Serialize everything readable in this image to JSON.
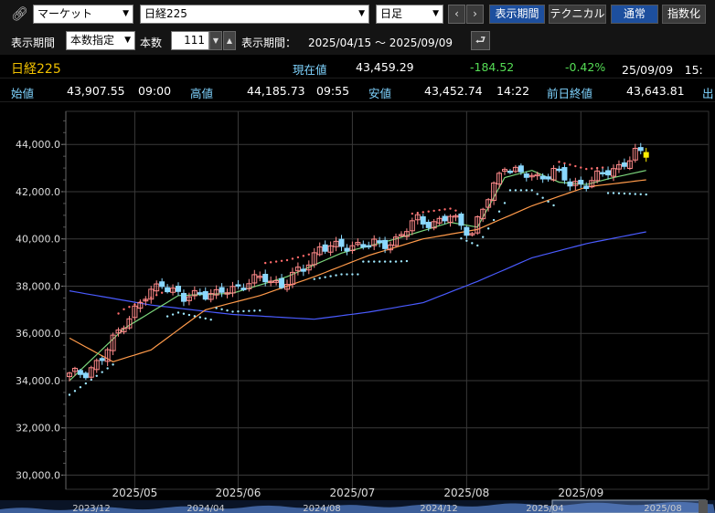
{
  "toolbar": {
    "market_select": "マーケット",
    "symbol_select": "日経225",
    "interval_select": "日足",
    "prev_icon": "chevron-left-icon",
    "next_icon": "chevron-right-icon",
    "display_period_button": "表示期間",
    "technical_button": "テクニカル",
    "normal_button": "通常",
    "index_button": "指数化"
  },
  "period": {
    "label": "表示期間",
    "mode_select": "本数指定",
    "count_label": "本数",
    "count_value": "111",
    "range_label": "表示期間：",
    "range_value": "2025/04/15 ～ 2025/09/09"
  },
  "quote": {
    "name": "日経225",
    "current_label": "現在値",
    "current_value": "43,459.29",
    "change": "-184.52",
    "change_pct": "-0.42%",
    "datetime": "25/09/09　15:",
    "open_label": "始値",
    "open_value": "43,907.55",
    "open_time": "09:00",
    "high_label": "高値",
    "high_value": "44,185.73",
    "high_time": "09:55",
    "low_label": "安値",
    "low_value": "43,452.74",
    "low_time": "14:22",
    "prev_close_label": "前日終値",
    "prev_close_value": "43,643.81",
    "prev_close_extra": "出"
  },
  "colors": {
    "up": "#ff8a8a",
    "down": "#8ad8ff",
    "ma_short": "#7cd67c",
    "ma_mid": "#ff9a4a",
    "ma_long": "#4a5bff",
    "sar_up": "#9fe8ff",
    "sar_down": "#ff6b6b",
    "last_candle": "#ffee00"
  },
  "chart_data": {
    "type": "candlestick",
    "y_ticks": [
      "44,000.0",
      "42,000.0",
      "40,000.0",
      "38,000.0",
      "36,000.0",
      "34,000.0",
      "32,000.0",
      "30,000.0"
    ],
    "y_tick_values": [
      44000,
      42000,
      40000,
      38000,
      36000,
      34000,
      32000,
      30000
    ],
    "ylim": [
      29400,
      45400
    ],
    "x_labels": [
      "2025/05",
      "2025/06",
      "2025/07",
      "2025/08",
      "2025/09"
    ],
    "x_label_index": [
      12,
      31,
      52,
      73,
      94
    ],
    "navigator_labels": [
      "2023/12",
      "2024/04",
      "2024/08",
      "2024/12",
      "2025/04",
      "2025/08"
    ],
    "num_bars": 111,
    "anchors": [
      [
        0,
        34200
      ],
      [
        3,
        34400
      ],
      [
        6,
        34900
      ],
      [
        10,
        36500
      ],
      [
        14,
        37500
      ],
      [
        17,
        38200
      ],
      [
        21,
        37400
      ],
      [
        24,
        37800
      ],
      [
        27,
        37600
      ],
      [
        30,
        37900
      ],
      [
        33,
        38200
      ],
      [
        36,
        38300
      ],
      [
        39,
        38100
      ],
      [
        43,
        38700
      ],
      [
        46,
        39700
      ],
      [
        49,
        39600
      ],
      [
        53,
        39800
      ],
      [
        57,
        39700
      ],
      [
        60,
        40000
      ],
      [
        64,
        40800
      ],
      [
        67,
        40700
      ],
      [
        70,
        40900
      ],
      [
        74,
        40300
      ],
      [
        77,
        41700
      ],
      [
        80,
        43200
      ],
      [
        83,
        42700
      ],
      [
        86,
        42600
      ],
      [
        89,
        42900
      ],
      [
        92,
        42300
      ],
      [
        95,
        42400
      ],
      [
        98,
        42700
      ],
      [
        101,
        43100
      ],
      [
        104,
        43600
      ],
      [
        106,
        43459
      ]
    ],
    "ma_short_anchors": [
      [
        0,
        34000
      ],
      [
        10,
        36200
      ],
      [
        20,
        37600
      ],
      [
        30,
        37700
      ],
      [
        40,
        38400
      ],
      [
        50,
        39400
      ],
      [
        60,
        40000
      ],
      [
        70,
        40700
      ],
      [
        75,
        40500
      ],
      [
        80,
        42600
      ],
      [
        85,
        42900
      ],
      [
        90,
        42400
      ],
      [
        95,
        42300
      ],
      [
        100,
        42600
      ],
      [
        106,
        42900
      ]
    ],
    "ma_mid_anchors": [
      [
        0,
        35800
      ],
      [
        8,
        34800
      ],
      [
        15,
        35300
      ],
      [
        25,
        37000
      ],
      [
        35,
        37600
      ],
      [
        45,
        38400
      ],
      [
        55,
        39300
      ],
      [
        65,
        40000
      ],
      [
        75,
        40400
      ],
      [
        85,
        41400
      ],
      [
        95,
        42200
      ],
      [
        106,
        42500
      ]
    ],
    "ma_long_anchors": [
      [
        0,
        37800
      ],
      [
        15,
        37200
      ],
      [
        30,
        36800
      ],
      [
        45,
        36600
      ],
      [
        55,
        36900
      ],
      [
        65,
        37300
      ],
      [
        75,
        38200
      ],
      [
        85,
        39200
      ],
      [
        95,
        39800
      ],
      [
        106,
        40300
      ]
    ]
  }
}
